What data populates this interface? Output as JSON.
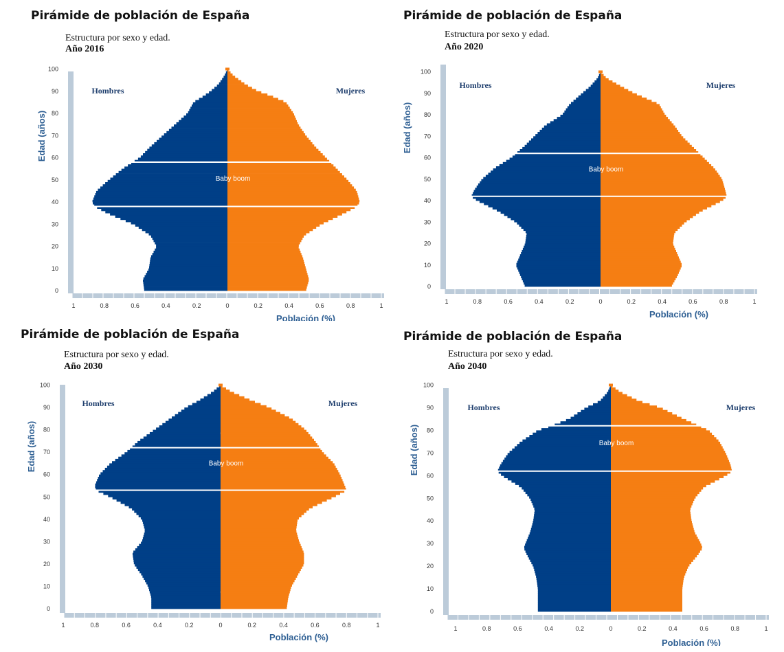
{
  "panels": [
    {
      "title": "Pirámide de población de España",
      "subtitle": "Estructura por sexo y edad.",
      "year_label": "Año 2016"
    },
    {
      "title": "Pirámide de población de España",
      "subtitle": "Estructura por sexo y edad.",
      "year_label": "Año 2020"
    },
    {
      "title": "Pirámide de población de España",
      "subtitle": "Estructura por sexo y edad.",
      "year_label": "Año 2030"
    },
    {
      "title": "Pirámide de población de España",
      "subtitle": "Estructura por sexo y edad.",
      "year_label": "Año 2040"
    }
  ],
  "chart_data": [
    {
      "type": "bar",
      "orientation": "horizontal population pyramid",
      "xlabel": "Población (%)",
      "ylabel": "Edad (años)",
      "xlim": [
        -1,
        1
      ],
      "ylim": [
        0,
        100
      ],
      "x_ticks": [
        "1",
        "0.8",
        "0.6",
        "0.4",
        "0.2",
        "0",
        "0.2",
        "0.4",
        "0.6",
        "0.8",
        "1"
      ],
      "y_ticks": [
        "0",
        "10",
        "20",
        "30",
        "40",
        "50",
        "60",
        "70",
        "80",
        "90",
        "100"
      ],
      "series": [
        {
          "name": "Hombres",
          "color": "#003f87",
          "points": [
            [
              0,
              0.54
            ],
            [
              5,
              0.55
            ],
            [
              10,
              0.51
            ],
            [
              15,
              0.5
            ],
            [
              20,
              0.46
            ],
            [
              25,
              0.5
            ],
            [
              30,
              0.61
            ],
            [
              35,
              0.78
            ],
            [
              38,
              0.86
            ],
            [
              40,
              0.88
            ],
            [
              45,
              0.85
            ],
            [
              50,
              0.77
            ],
            [
              55,
              0.68
            ],
            [
              60,
              0.57
            ],
            [
              65,
              0.5
            ],
            [
              70,
              0.42
            ],
            [
              75,
              0.34
            ],
            [
              80,
              0.26
            ],
            [
              85,
              0.22
            ],
            [
              88,
              0.15
            ],
            [
              90,
              0.11
            ],
            [
              93,
              0.06
            ],
            [
              97,
              0.02
            ],
            [
              100,
              0
            ]
          ]
        },
        {
          "name": "Mujeres",
          "color": "#f57e13",
          "points": [
            [
              0,
              0.51
            ],
            [
              5,
              0.53
            ],
            [
              10,
              0.51
            ],
            [
              15,
              0.49
            ],
            [
              20,
              0.46
            ],
            [
              25,
              0.5
            ],
            [
              30,
              0.61
            ],
            [
              35,
              0.76
            ],
            [
              38,
              0.84
            ],
            [
              40,
              0.86
            ],
            [
              45,
              0.84
            ],
            [
              50,
              0.78
            ],
            [
              55,
              0.71
            ],
            [
              60,
              0.64
            ],
            [
              65,
              0.57
            ],
            [
              70,
              0.51
            ],
            [
              75,
              0.46
            ],
            [
              80,
              0.43
            ],
            [
              85,
              0.38
            ],
            [
              88,
              0.28
            ],
            [
              90,
              0.2
            ],
            [
              93,
              0.12
            ],
            [
              97,
              0.04
            ],
            [
              100,
              0
            ]
          ]
        }
      ],
      "annotations": [
        {
          "text": "Hombres"
        },
        {
          "text": "Mujeres"
        },
        {
          "text": "Baby boom",
          "age_range": [
            38,
            58
          ]
        }
      ]
    },
    {
      "type": "bar",
      "orientation": "horizontal population pyramid",
      "xlabel": "Población (%)",
      "ylabel": "Edad (años)",
      "xlim": [
        -1,
        1
      ],
      "ylim": [
        0,
        100
      ],
      "x_ticks": [
        "1",
        "0.8",
        "0.6",
        "0.4",
        "0.2",
        "0",
        "0.2",
        "0.4",
        "0.6",
        "0.8",
        "1"
      ],
      "y_ticks": [
        "0",
        "10",
        "20",
        "30",
        "40",
        "50",
        "60",
        "70",
        "80",
        "90",
        "100"
      ],
      "series": [
        {
          "name": "Hombres",
          "color": "#003f87",
          "points": [
            [
              0,
              0.49
            ],
            [
              5,
              0.52
            ],
            [
              10,
              0.55
            ],
            [
              15,
              0.52
            ],
            [
              20,
              0.49
            ],
            [
              25,
              0.48
            ],
            [
              30,
              0.55
            ],
            [
              35,
              0.66
            ],
            [
              40,
              0.8
            ],
            [
              42,
              0.84
            ],
            [
              45,
              0.82
            ],
            [
              50,
              0.77
            ],
            [
              55,
              0.69
            ],
            [
              60,
              0.58
            ],
            [
              65,
              0.5
            ],
            [
              70,
              0.43
            ],
            [
              75,
              0.36
            ],
            [
              80,
              0.25
            ],
            [
              85,
              0.2
            ],
            [
              90,
              0.12
            ],
            [
              93,
              0.07
            ],
            [
              97,
              0.02
            ],
            [
              100,
              0
            ]
          ]
        },
        {
          "name": "Mujeres",
          "color": "#f57e13",
          "points": [
            [
              0,
              0.46
            ],
            [
              5,
              0.5
            ],
            [
              10,
              0.53
            ],
            [
              15,
              0.5
            ],
            [
              20,
              0.47
            ],
            [
              25,
              0.48
            ],
            [
              30,
              0.55
            ],
            [
              35,
              0.65
            ],
            [
              40,
              0.79
            ],
            [
              42,
              0.82
            ],
            [
              45,
              0.81
            ],
            [
              50,
              0.79
            ],
            [
              55,
              0.74
            ],
            [
              60,
              0.67
            ],
            [
              65,
              0.6
            ],
            [
              70,
              0.53
            ],
            [
              75,
              0.48
            ],
            [
              80,
              0.42
            ],
            [
              85,
              0.38
            ],
            [
              90,
              0.22
            ],
            [
              93,
              0.14
            ],
            [
              97,
              0.04
            ],
            [
              100,
              0
            ]
          ]
        }
      ],
      "annotations": [
        {
          "text": "Hombres"
        },
        {
          "text": "Mujeres"
        },
        {
          "text": "Baby boom",
          "age_range": [
            42,
            62
          ]
        }
      ]
    },
    {
      "type": "bar",
      "orientation": "horizontal population pyramid",
      "xlabel": "Población (%)",
      "ylabel": "Edad (años)",
      "xlim": [
        -1,
        1
      ],
      "ylim": [
        0,
        100
      ],
      "x_ticks": [
        "1",
        "0.8",
        "0.6",
        "0.4",
        "0.2",
        "0",
        "0.2",
        "0.4",
        "0.6",
        "0.8",
        "1"
      ],
      "y_ticks": [
        "0",
        "10",
        "20",
        "30",
        "40",
        "50",
        "60",
        "70",
        "80",
        "90",
        "100"
      ],
      "series": [
        {
          "name": "Hombres",
          "color": "#003f87",
          "points": [
            [
              0,
              0.44
            ],
            [
              5,
              0.44
            ],
            [
              10,
              0.46
            ],
            [
              15,
              0.5
            ],
            [
              20,
              0.55
            ],
            [
              25,
              0.56
            ],
            [
              30,
              0.5
            ],
            [
              35,
              0.48
            ],
            [
              40,
              0.5
            ],
            [
              45,
              0.57
            ],
            [
              50,
              0.7
            ],
            [
              53,
              0.79
            ],
            [
              55,
              0.8
            ],
            [
              60,
              0.77
            ],
            [
              65,
              0.7
            ],
            [
              70,
              0.6
            ],
            [
              75,
              0.52
            ],
            [
              80,
              0.42
            ],
            [
              85,
              0.32
            ],
            [
              90,
              0.22
            ],
            [
              93,
              0.14
            ],
            [
              97,
              0.05
            ],
            [
              100,
              0
            ]
          ]
        },
        {
          "name": "Mujeres",
          "color": "#f57e13",
          "points": [
            [
              0,
              0.42
            ],
            [
              5,
              0.43
            ],
            [
              10,
              0.45
            ],
            [
              15,
              0.49
            ],
            [
              20,
              0.53
            ],
            [
              25,
              0.53
            ],
            [
              30,
              0.5
            ],
            [
              35,
              0.48
            ],
            [
              40,
              0.49
            ],
            [
              45,
              0.57
            ],
            [
              50,
              0.72
            ],
            [
              53,
              0.8
            ],
            [
              55,
              0.79
            ],
            [
              60,
              0.76
            ],
            [
              65,
              0.72
            ],
            [
              70,
              0.65
            ],
            [
              75,
              0.6
            ],
            [
              80,
              0.54
            ],
            [
              85,
              0.45
            ],
            [
              90,
              0.31
            ],
            [
              93,
              0.2
            ],
            [
              97,
              0.07
            ],
            [
              100,
              0
            ]
          ]
        }
      ],
      "annotations": [
        {
          "text": "Hombres"
        },
        {
          "text": "Mujeres"
        },
        {
          "text": "Baby boom",
          "age_range": [
            53,
            72
          ]
        }
      ]
    },
    {
      "type": "bar",
      "orientation": "horizontal population pyramid",
      "xlabel": "Población (%)",
      "ylabel": "Edad (años)",
      "xlim": [
        -1,
        1
      ],
      "ylim": [
        0,
        100
      ],
      "x_ticks": [
        "1",
        "0.8",
        "0.6",
        "0.4",
        "0.2",
        "0",
        "0.2",
        "0.4",
        "0.6",
        "0.8",
        "1"
      ],
      "y_ticks": [
        "0",
        "10",
        "20",
        "30",
        "40",
        "50",
        "60",
        "70",
        "80",
        "90",
        "100"
      ],
      "series": [
        {
          "name": "Hombres",
          "color": "#003f87",
          "points": [
            [
              0,
              0.47
            ],
            [
              5,
              0.47
            ],
            [
              10,
              0.47
            ],
            [
              15,
              0.48
            ],
            [
              20,
              0.5
            ],
            [
              25,
              0.54
            ],
            [
              28,
              0.56
            ],
            [
              30,
              0.55
            ],
            [
              35,
              0.52
            ],
            [
              40,
              0.5
            ],
            [
              45,
              0.49
            ],
            [
              50,
              0.52
            ],
            [
              55,
              0.58
            ],
            [
              60,
              0.7
            ],
            [
              62,
              0.73
            ],
            [
              65,
              0.71
            ],
            [
              70,
              0.66
            ],
            [
              75,
              0.58
            ],
            [
              80,
              0.47
            ],
            [
              82,
              0.38
            ],
            [
              85,
              0.27
            ],
            [
              90,
              0.16
            ],
            [
              93,
              0.07
            ],
            [
              97,
              0.02
            ],
            [
              100,
              0
            ]
          ]
        },
        {
          "name": "Mujeres",
          "color": "#f57e13",
          "points": [
            [
              0,
              0.46
            ],
            [
              5,
              0.46
            ],
            [
              10,
              0.46
            ],
            [
              15,
              0.47
            ],
            [
              20,
              0.5
            ],
            [
              25,
              0.56
            ],
            [
              28,
              0.59
            ],
            [
              30,
              0.58
            ],
            [
              35,
              0.54
            ],
            [
              40,
              0.52
            ],
            [
              45,
              0.51
            ],
            [
              50,
              0.54
            ],
            [
              55,
              0.6
            ],
            [
              60,
              0.74
            ],
            [
              62,
              0.78
            ],
            [
              65,
              0.77
            ],
            [
              70,
              0.74
            ],
            [
              75,
              0.7
            ],
            [
              80,
              0.63
            ],
            [
              85,
              0.47
            ],
            [
              90,
              0.32
            ],
            [
              93,
              0.18
            ],
            [
              97,
              0.06
            ],
            [
              100,
              0
            ]
          ]
        }
      ],
      "annotations": [
        {
          "text": "Hombres"
        },
        {
          "text": "Mujeres"
        },
        {
          "text": "Baby boom",
          "age_range": [
            62,
            82
          ]
        }
      ]
    }
  ]
}
